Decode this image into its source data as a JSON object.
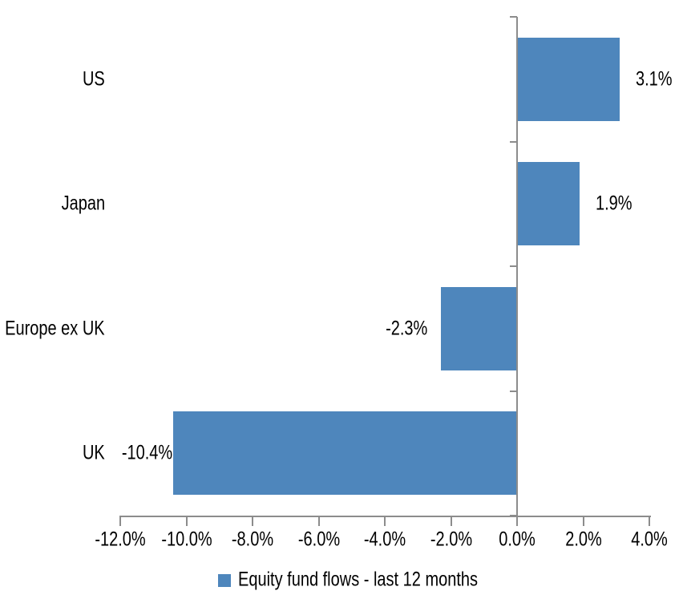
{
  "chart_data": {
    "type": "bar",
    "orientation": "horizontal",
    "categories": [
      "US",
      "Japan",
      "Europe ex UK",
      "UK"
    ],
    "values": [
      3.1,
      1.9,
      -2.3,
      -10.4
    ],
    "value_labels": [
      "3.1%",
      "1.9%",
      "-2.3%",
      "-10.4%"
    ],
    "x_axis": {
      "min": -12,
      "max": 4,
      "tick_step": 2,
      "tick_values": [
        -12,
        -10,
        -8,
        -6,
        -4,
        -2,
        0,
        2,
        4
      ],
      "tick_labels": [
        "-12.0%",
        "-10.0%",
        "-8.0%",
        "-6.0%",
        "-4.0%",
        "-2.0%",
        "0.0%",
        "2.0%",
        "4.0%"
      ]
    },
    "legend": {
      "position": "bottom",
      "label": "Equity fund flows - last 12 months"
    },
    "colors": {
      "bar": "#4E86BC",
      "axis": "#8C8C8C",
      "text": "#000000"
    },
    "grid": false
  }
}
